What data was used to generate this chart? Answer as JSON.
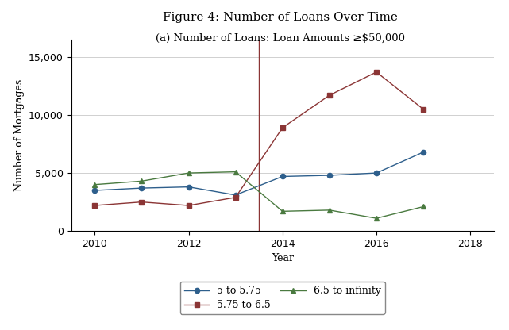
{
  "title": "Figure 4: Number of Loans Over Time",
  "subtitle": "(a) Number of Loans: Loan Amounts ≥$50,000",
  "xlabel": "Year",
  "ylabel": "Number of Mortgages",
  "xlim": [
    2009.5,
    2018.5
  ],
  "ylim": [
    0,
    16500
  ],
  "yticks": [
    0,
    5000,
    10000,
    15000
  ],
  "xticks": [
    2010,
    2012,
    2014,
    2016,
    2018
  ],
  "vline_x": 2013.5,
  "vline_color": "#8b3535",
  "series_order": [
    "5 to 5.75",
    "5.75 to 6.5",
    "6.5 to infinity"
  ],
  "series": {
    "5 to 5.75": {
      "x": [
        2010,
        2011,
        2012,
        2013,
        2014,
        2015,
        2016,
        2017
      ],
      "y": [
        3500,
        3700,
        3800,
        3100,
        4700,
        4800,
        5000,
        6800
      ],
      "color": "#2e5f8c",
      "marker": "o",
      "linestyle": "-"
    },
    "5.75 to 6.5": {
      "x": [
        2010,
        2011,
        2012,
        2013,
        2014,
        2015,
        2016,
        2017
      ],
      "y": [
        2200,
        2500,
        2200,
        2900,
        8900,
        11700,
        13700,
        10500
      ],
      "color": "#8b3535",
      "marker": "s",
      "linestyle": "-"
    },
    "6.5 to infinity": {
      "x": [
        2010,
        2011,
        2012,
        2013,
        2014,
        2015,
        2016,
        2017
      ],
      "y": [
        4000,
        4300,
        5000,
        5100,
        1700,
        1800,
        1100,
        2100
      ],
      "color": "#4a7a40",
      "marker": "^",
      "linestyle": "-"
    }
  },
  "background_color": "#ffffff",
  "grid_color": "#d0d0d0",
  "title_fontsize": 11,
  "subtitle_fontsize": 9.5,
  "axis_label_fontsize": 9,
  "tick_fontsize": 9,
  "legend_fontsize": 9
}
